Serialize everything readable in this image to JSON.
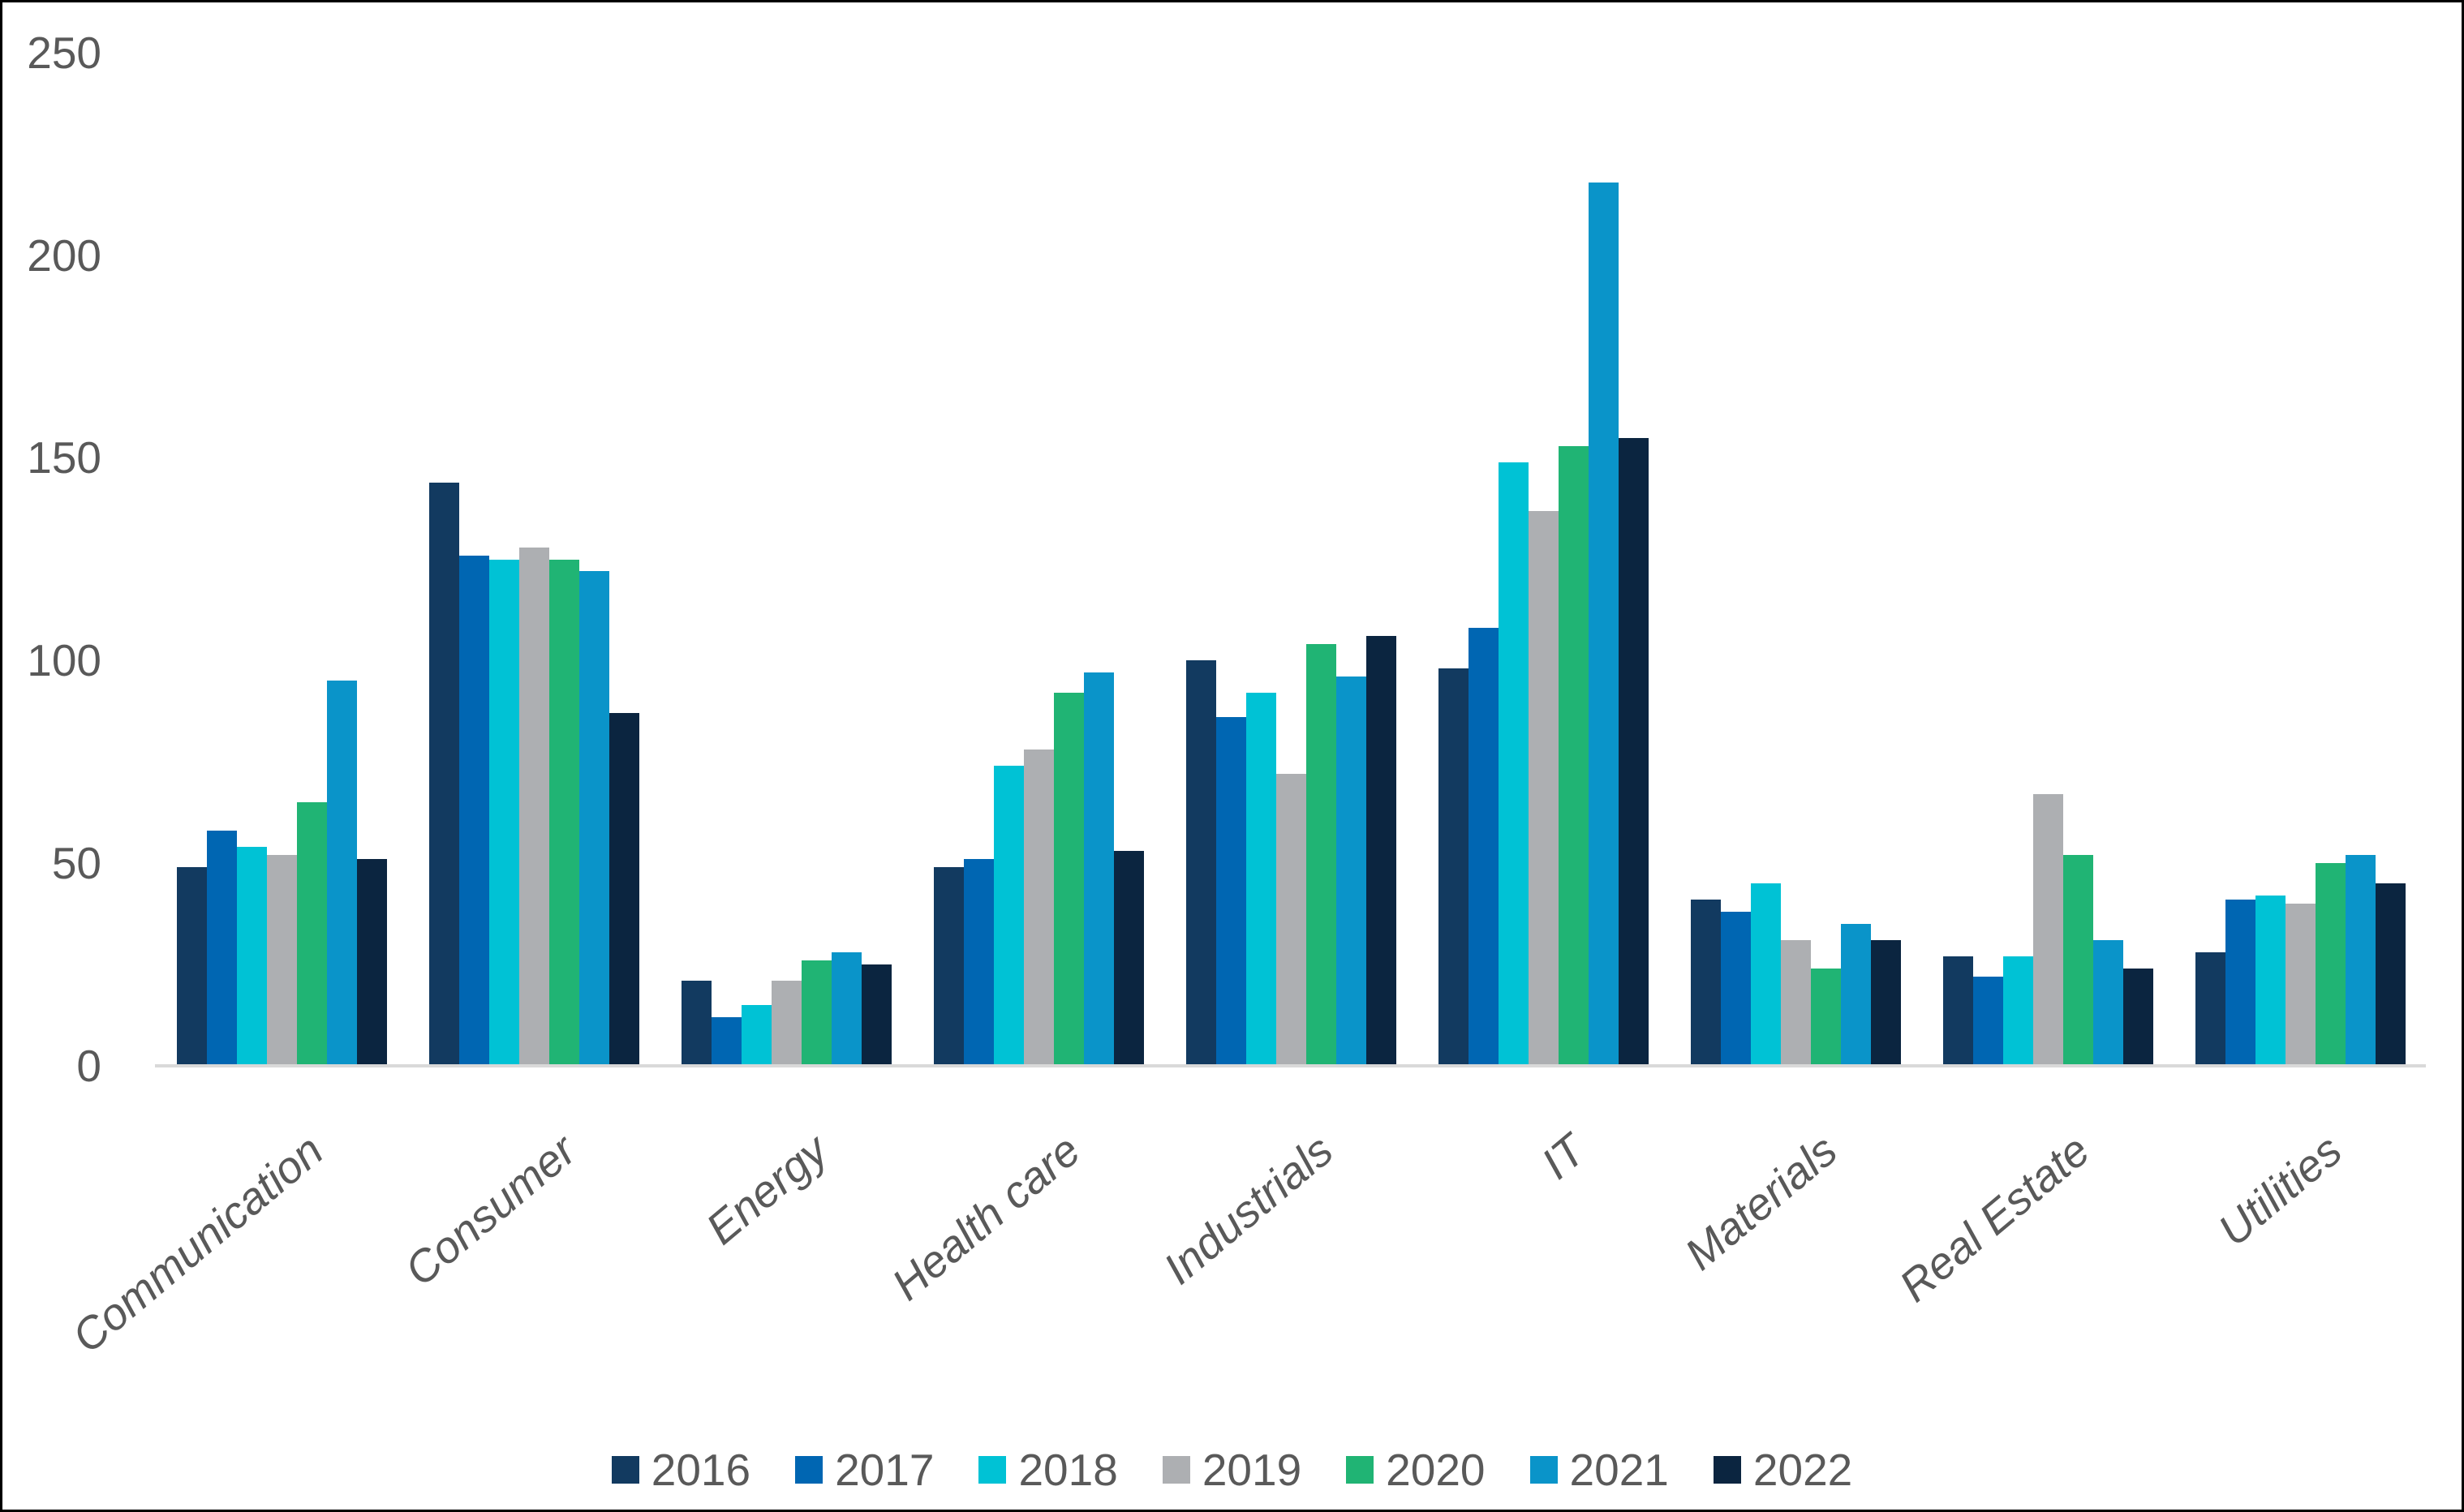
{
  "colors": {
    "axis_line": "#d9d9d9",
    "text": "#595959",
    "background": "#ffffff",
    "border": "#000000"
  },
  "chart_data": {
    "type": "bar",
    "title": "",
    "xlabel": "",
    "ylabel": "",
    "ylim": [
      0,
      250
    ],
    "grid": false,
    "legend_position": "bottom",
    "y_tick_labels": [
      "250",
      "200",
      "150",
      "100",
      "50",
      "0"
    ],
    "y_ticks": [
      0,
      50,
      100,
      150,
      200,
      250
    ],
    "categories": [
      "Communication",
      "Consumer",
      "Energy",
      "Health care",
      "Industrials",
      "IT",
      "Materials",
      "Real Estate",
      "Utilities"
    ],
    "series": [
      {
        "name": "2016",
        "color": "#123a60",
        "values": [
          49,
          144,
          21,
          49,
          100,
          98,
          41,
          27,
          28
        ]
      },
      {
        "name": "2017",
        "color": "#0066b2",
        "values": [
          58,
          126,
          12,
          51,
          86,
          108,
          38,
          22,
          41
        ]
      },
      {
        "name": "2018",
        "color": "#00c2d5",
        "values": [
          54,
          125,
          15,
          74,
          92,
          149,
          45,
          27,
          42
        ]
      },
      {
        "name": "2019",
        "color": "#adafb2",
        "values": [
          52,
          128,
          21,
          78,
          72,
          137,
          31,
          67,
          40
        ]
      },
      {
        "name": "2020",
        "color": "#20b474",
        "values": [
          65,
          125,
          26,
          92,
          104,
          153,
          24,
          52,
          50
        ]
      },
      {
        "name": "2021",
        "color": "#0a94c9",
        "values": [
          95,
          122,
          28,
          97,
          96,
          218,
          35,
          31,
          52
        ]
      },
      {
        "name": "2022",
        "color": "#0b2540",
        "values": [
          51,
          87,
          25,
          53,
          106,
          155,
          31,
          24,
          45
        ]
      }
    ]
  }
}
